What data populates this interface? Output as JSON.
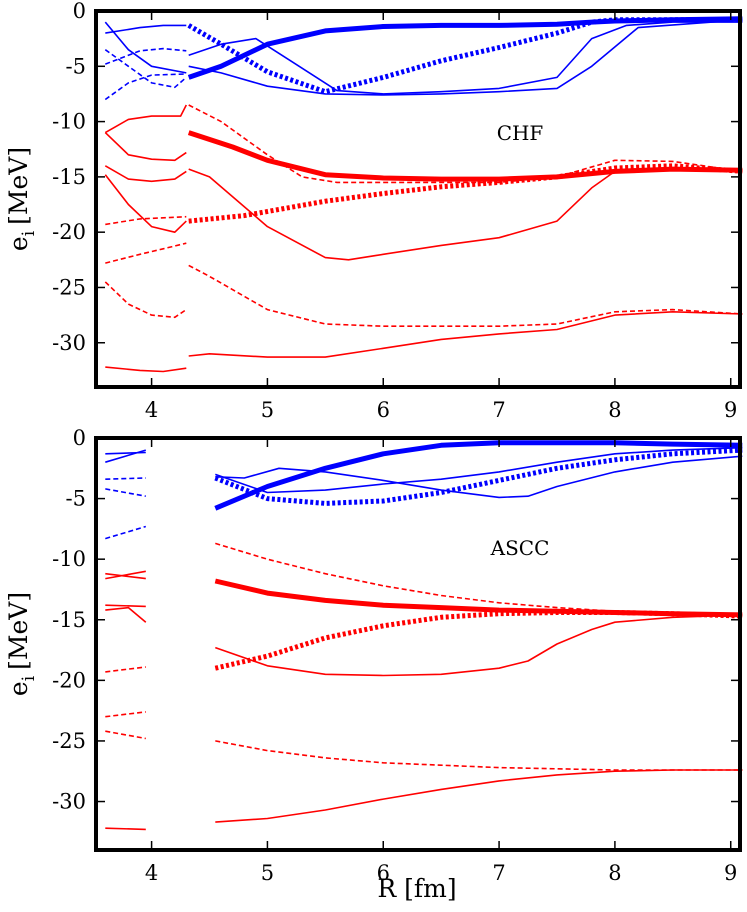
{
  "chart_data": [
    {
      "type": "line",
      "annotation": "CHF",
      "ylabel": "e",
      "ylabel_sub": "i",
      "ylabel_unit": "[MeV]",
      "xlabel": "",
      "xlim": [
        3.52,
        9.08
      ],
      "ylim": [
        -34,
        0
      ],
      "xticks": [
        "4",
        "5",
        "6",
        "7",
        "8",
        "9"
      ],
      "yticks": [
        "0",
        "-5",
        "-10",
        "-15",
        "-20",
        "-25",
        "-30"
      ],
      "series": [
        {
          "color": "#0000ff",
          "style": "solid",
          "weight": "thin",
          "x": [
            3.6,
            3.8,
            4.0,
            4.3
          ],
          "y": [
            -1.0,
            -3.5,
            -5.0,
            -5.6
          ]
        },
        {
          "color": "#0000ff",
          "style": "solid",
          "weight": "thin",
          "x": [
            4.32,
            4.6,
            4.9,
            5.2,
            5.6,
            6.0,
            6.5,
            7.0,
            7.5,
            7.8,
            8.1,
            8.5,
            9.1
          ],
          "y": [
            -4.0,
            -3.0,
            -2.5,
            -4.5,
            -7.2,
            -7.5,
            -7.3,
            -7.0,
            -6.0,
            -2.5,
            -1.3,
            -1.0,
            -1.0
          ]
        },
        {
          "color": "#0000ff",
          "style": "solid",
          "weight": "thin",
          "x": [
            3.6,
            3.9,
            4.1,
            4.3
          ],
          "y": [
            -2.0,
            -1.5,
            -1.3,
            -1.3
          ]
        },
        {
          "color": "#0000ff",
          "style": "solid",
          "weight": "thin",
          "x": [
            4.32,
            4.6,
            5.0,
            5.5,
            6.0,
            6.5,
            7.0,
            7.5,
            7.8,
            8.2,
            9.1
          ],
          "y": [
            -5.0,
            -5.6,
            -6.8,
            -7.5,
            -7.6,
            -7.5,
            -7.3,
            -7.0,
            -5.0,
            -1.5,
            -0.8
          ]
        },
        {
          "color": "#0000ff",
          "style": "dashed",
          "weight": "thin",
          "x": [
            3.6,
            3.8,
            4.0,
            4.3
          ],
          "y": [
            -8.0,
            -6.5,
            -5.8,
            -5.7
          ]
        },
        {
          "color": "#0000ff",
          "style": "dashed",
          "weight": "thin",
          "x": [
            3.6,
            3.8,
            4.0,
            4.2,
            4.3
          ],
          "y": [
            -3.5,
            -5.0,
            -6.5,
            -6.9,
            -6.0
          ]
        },
        {
          "color": "#0000ff",
          "style": "dashed",
          "weight": "thin",
          "x": [
            3.6,
            3.9,
            4.1,
            4.3
          ],
          "y": [
            -4.8,
            -3.6,
            -3.4,
            -3.6
          ]
        },
        {
          "color": "#0000ff",
          "style": "solid",
          "weight": "thick",
          "x": [
            4.32,
            4.6,
            5.0,
            5.5,
            6.0,
            6.5,
            7.0,
            7.5,
            7.8,
            8.0,
            8.5,
            9.1
          ],
          "y": [
            -6.0,
            -5.0,
            -3.0,
            -1.8,
            -1.4,
            -1.3,
            -1.3,
            -1.2,
            -1.0,
            -0.9,
            -0.8,
            -0.7
          ]
        },
        {
          "color": "#0000ff",
          "style": "dashed",
          "weight": "thick",
          "x": [
            4.32,
            4.6,
            5.0,
            5.5,
            6.0,
            6.5,
            7.0,
            7.5,
            7.8,
            8.0,
            8.5,
            9.1
          ],
          "y": [
            -1.3,
            -3.0,
            -5.5,
            -7.3,
            -6.0,
            -4.5,
            -3.3,
            -2.0,
            -1.0,
            -0.8,
            -0.8,
            -0.8
          ]
        },
        {
          "color": "#ff0000",
          "style": "solid",
          "weight": "thick",
          "x": [
            4.32,
            4.7,
            5.0,
            5.5,
            6.0,
            6.5,
            7.0,
            7.5,
            8.0,
            8.5,
            9.1
          ],
          "y": [
            -11.0,
            -12.3,
            -13.5,
            -14.8,
            -15.1,
            -15.2,
            -15.2,
            -15.0,
            -14.5,
            -14.3,
            -14.4
          ]
        },
        {
          "color": "#ff0000",
          "style": "dashed",
          "weight": "thick",
          "x": [
            4.32,
            4.8,
            5.5,
            6.0,
            6.5,
            7.0,
            7.5,
            8.0,
            8.5,
            9.1
          ],
          "y": [
            -19.0,
            -18.5,
            -17.2,
            -16.5,
            -15.9,
            -15.5,
            -15.0,
            -14.2,
            -14.0,
            -14.5
          ]
        },
        {
          "color": "#ff0000",
          "style": "solid",
          "weight": "thin",
          "x": [
            3.6,
            3.8,
            4.0,
            4.25,
            4.3
          ],
          "y": [
            -11.0,
            -9.8,
            -9.5,
            -9.5,
            -8.5
          ]
        },
        {
          "color": "#ff0000",
          "style": "solid",
          "weight": "thin",
          "x": [
            3.6,
            3.8,
            4.0,
            4.2,
            4.3
          ],
          "y": [
            -11.0,
            -13.0,
            -13.4,
            -13.5,
            -12.8
          ]
        },
        {
          "color": "#ff0000",
          "style": "solid",
          "weight": "thin",
          "x": [
            3.6,
            3.8,
            4.0,
            4.2,
            4.3
          ],
          "y": [
            -14.0,
            -15.2,
            -15.4,
            -15.2,
            -14.5
          ]
        },
        {
          "color": "#ff0000",
          "style": "solid",
          "weight": "thin",
          "x": [
            3.6,
            3.8,
            4.0,
            4.2,
            4.3
          ],
          "y": [
            -14.8,
            -17.5,
            -19.5,
            -20.0,
            -19.0
          ]
        },
        {
          "color": "#ff0000",
          "style": "solid",
          "weight": "thin",
          "x": [
            4.32,
            4.5,
            5.0,
            5.5,
            5.7,
            6.0,
            6.5,
            7.0,
            7.5,
            7.8,
            8.0,
            8.5,
            9.1
          ],
          "y": [
            -14.3,
            -15.0,
            -19.5,
            -22.3,
            -22.5,
            -22.0,
            -21.2,
            -20.5,
            -19.0,
            -16.0,
            -14.5,
            -14.3,
            -14.4
          ]
        },
        {
          "color": "#ff0000",
          "style": "dashed",
          "weight": "thin",
          "x": [
            4.32,
            4.6,
            5.0,
            5.3,
            5.6,
            6.0,
            6.5,
            7.0,
            7.5,
            8.0,
            8.5,
            9.1
          ],
          "y": [
            -8.5,
            -10.0,
            -13.0,
            -15.0,
            -15.5,
            -15.5,
            -15.5,
            -15.5,
            -15.0,
            -13.5,
            -13.6,
            -14.5
          ]
        },
        {
          "color": "#ff0000",
          "style": "dashed",
          "weight": "thin",
          "x": [
            3.6,
            3.9,
            4.1,
            4.3
          ],
          "y": [
            -19.3,
            -18.8,
            -18.7,
            -18.6
          ]
        },
        {
          "color": "#ff0000",
          "style": "dashed",
          "weight": "thin",
          "x": [
            3.6,
            3.9,
            4.1,
            4.3
          ],
          "y": [
            -22.8,
            -22.0,
            -21.5,
            -21.0
          ]
        },
        {
          "color": "#ff0000",
          "style": "dashed",
          "weight": "thin",
          "x": [
            3.6,
            3.8,
            4.0,
            4.2,
            4.3
          ],
          "y": [
            -24.5,
            -26.5,
            -27.5,
            -27.7,
            -27.0
          ]
        },
        {
          "color": "#ff0000",
          "style": "dashed",
          "weight": "thin",
          "x": [
            4.32,
            4.5,
            5.0,
            5.5,
            6.0,
            6.5,
            7.0,
            7.5,
            8.0,
            8.5,
            9.1
          ],
          "y": [
            -23.0,
            -24.0,
            -27.0,
            -28.3,
            -28.5,
            -28.5,
            -28.5,
            -28.3,
            -27.2,
            -27.0,
            -27.4
          ]
        },
        {
          "color": "#ff0000",
          "style": "solid",
          "weight": "thin",
          "x": [
            3.6,
            3.9,
            4.1,
            4.3
          ],
          "y": [
            -32.2,
            -32.5,
            -32.6,
            -32.3
          ]
        },
        {
          "color": "#ff0000",
          "style": "solid",
          "weight": "thin",
          "x": [
            4.32,
            4.5,
            5.0,
            5.5,
            6.0,
            6.5,
            7.0,
            7.5,
            8.0,
            8.5,
            9.1
          ],
          "y": [
            -31.2,
            -31.0,
            -31.3,
            -31.3,
            -30.5,
            -29.7,
            -29.2,
            -28.8,
            -27.5,
            -27.2,
            -27.4
          ]
        }
      ]
    },
    {
      "type": "line",
      "annotation": "ASCC",
      "ylabel": "e",
      "ylabel_sub": "i",
      "ylabel_unit": "[MeV]",
      "xlabel": "R [fm]",
      "xlim": [
        3.52,
        9.08
      ],
      "ylim": [
        -34,
        0
      ],
      "xticks": [
        "4",
        "5",
        "6",
        "7",
        "8",
        "9"
      ],
      "yticks": [
        "0",
        "-5",
        "-10",
        "-15",
        "-20",
        "-25",
        "-30"
      ],
      "series": [
        {
          "color": "#0000ff",
          "style": "solid",
          "weight": "thin",
          "x": [
            3.6,
            3.95
          ],
          "y": [
            -1.3,
            -1.2
          ]
        },
        {
          "color": "#0000ff",
          "style": "solid",
          "weight": "thin",
          "x": [
            3.6,
            3.95
          ],
          "y": [
            -2.0,
            -1.0
          ]
        },
        {
          "color": "#0000ff",
          "style": "dashed",
          "weight": "thin",
          "x": [
            3.6,
            3.95
          ],
          "y": [
            -3.4,
            -3.3
          ]
        },
        {
          "color": "#0000ff",
          "style": "dashed",
          "weight": "thin",
          "x": [
            3.6,
            3.95
          ],
          "y": [
            -4.2,
            -4.8
          ]
        },
        {
          "color": "#0000ff",
          "style": "dashed",
          "weight": "thin",
          "x": [
            3.6,
            3.95
          ],
          "y": [
            -8.3,
            -7.3
          ]
        },
        {
          "color": "#0000ff",
          "style": "solid",
          "weight": "thin",
          "x": [
            4.55,
            4.8,
            5.1,
            5.5,
            6.0,
            6.5,
            7.0,
            7.25,
            7.5,
            8.0,
            8.5,
            9.1
          ],
          "y": [
            -3.2,
            -3.3,
            -2.5,
            -2.8,
            -3.5,
            -4.3,
            -4.9,
            -4.8,
            -4.0,
            -2.8,
            -2.0,
            -1.5
          ]
        },
        {
          "color": "#0000ff",
          "style": "solid",
          "weight": "thin",
          "x": [
            4.55,
            5.0,
            5.5,
            6.0,
            6.5,
            7.0,
            7.5,
            8.0,
            8.5,
            9.1
          ],
          "y": [
            -3.0,
            -4.5,
            -4.3,
            -3.8,
            -3.4,
            -2.8,
            -2.0,
            -1.3,
            -1.0,
            -0.8
          ]
        },
        {
          "color": "#0000ff",
          "style": "solid",
          "weight": "thick",
          "x": [
            4.55,
            5.0,
            5.5,
            6.0,
            6.5,
            7.0,
            7.5,
            8.0,
            8.5,
            9.1
          ],
          "y": [
            -5.8,
            -4.0,
            -2.5,
            -1.3,
            -0.6,
            -0.4,
            -0.4,
            -0.4,
            -0.5,
            -0.6
          ]
        },
        {
          "color": "#0000ff",
          "style": "dashed",
          "weight": "thick",
          "x": [
            4.55,
            5.0,
            5.5,
            6.0,
            6.5,
            7.0,
            7.5,
            8.0,
            8.5,
            9.1
          ],
          "y": [
            -3.3,
            -5.0,
            -5.4,
            -5.2,
            -4.5,
            -3.5,
            -2.5,
            -1.8,
            -1.3,
            -1.0
          ]
        },
        {
          "color": "#ff0000",
          "style": "solid",
          "weight": "thin",
          "x": [
            3.6,
            3.95
          ],
          "y": [
            -11.2,
            -11.6
          ]
        },
        {
          "color": "#ff0000",
          "style": "solid",
          "weight": "thin",
          "x": [
            3.6,
            3.95
          ],
          "y": [
            -11.6,
            -11.0
          ]
        },
        {
          "color": "#ff0000",
          "style": "solid",
          "weight": "thin",
          "x": [
            3.6,
            3.95
          ],
          "y": [
            -13.8,
            -13.9
          ]
        },
        {
          "color": "#ff0000",
          "style": "solid",
          "weight": "thin",
          "x": [
            3.6,
            3.8,
            3.95
          ],
          "y": [
            -14.2,
            -14.0,
            -15.2
          ]
        },
        {
          "color": "#ff0000",
          "style": "dashed",
          "weight": "thin",
          "x": [
            3.6,
            3.95
          ],
          "y": [
            -19.3,
            -18.9
          ]
        },
        {
          "color": "#ff0000",
          "style": "dashed",
          "weight": "thin",
          "x": [
            3.6,
            3.95
          ],
          "y": [
            -23.0,
            -22.6
          ]
        },
        {
          "color": "#ff0000",
          "style": "dashed",
          "weight": "thin",
          "x": [
            3.6,
            3.95
          ],
          "y": [
            -24.2,
            -24.8
          ]
        },
        {
          "color": "#ff0000",
          "style": "solid",
          "weight": "thin",
          "x": [
            3.6,
            3.95
          ],
          "y": [
            -32.2,
            -32.3
          ]
        },
        {
          "color": "#ff0000",
          "style": "dashed",
          "weight": "thin",
          "x": [
            4.55,
            5.0,
            5.5,
            6.0,
            6.5,
            7.0,
            7.5,
            8.0,
            8.5,
            9.1
          ],
          "y": [
            -8.7,
            -10.0,
            -11.2,
            -12.2,
            -13.0,
            -13.6,
            -14.0,
            -14.3,
            -14.4,
            -14.5
          ]
        },
        {
          "color": "#ff0000",
          "style": "solid",
          "weight": "thick",
          "x": [
            4.55,
            5.0,
            5.5,
            6.0,
            6.5,
            7.0,
            7.5,
            8.0,
            8.5,
            9.1
          ],
          "y": [
            -11.8,
            -12.8,
            -13.4,
            -13.8,
            -14.0,
            -14.2,
            -14.3,
            -14.4,
            -14.5,
            -14.6
          ]
        },
        {
          "color": "#ff0000",
          "style": "dashed",
          "weight": "thick",
          "x": [
            4.55,
            5.0,
            5.5,
            6.0,
            6.5,
            7.0,
            7.5,
            8.0,
            8.5,
            9.1
          ],
          "y": [
            -19.0,
            -18.0,
            -16.5,
            -15.5,
            -14.8,
            -14.5,
            -14.4,
            -14.4,
            -14.5,
            -14.7
          ]
        },
        {
          "color": "#ff0000",
          "style": "solid",
          "weight": "thin",
          "x": [
            4.55,
            5.0,
            5.5,
            6.0,
            6.5,
            7.0,
            7.25,
            7.5,
            7.8,
            8.0,
            8.5,
            9.1
          ],
          "y": [
            -17.3,
            -18.8,
            -19.5,
            -19.6,
            -19.5,
            -19.0,
            -18.4,
            -17.0,
            -15.8,
            -15.2,
            -14.8,
            -14.6
          ]
        },
        {
          "color": "#ff0000",
          "style": "dashed",
          "weight": "thin",
          "x": [
            4.55,
            5.0,
            5.5,
            6.0,
            6.5,
            7.0,
            7.5,
            8.0,
            8.5,
            9.1
          ],
          "y": [
            -25.0,
            -25.8,
            -26.4,
            -26.8,
            -27.0,
            -27.2,
            -27.3,
            -27.4,
            -27.4,
            -27.4
          ]
        },
        {
          "color": "#ff0000",
          "style": "solid",
          "weight": "thin",
          "x": [
            4.55,
            5.0,
            5.5,
            6.0,
            6.5,
            7.0,
            7.5,
            8.0,
            8.5,
            9.1
          ],
          "y": [
            -31.7,
            -31.4,
            -30.7,
            -29.8,
            -29.0,
            -28.3,
            -27.8,
            -27.5,
            -27.4,
            -27.4
          ]
        }
      ]
    }
  ]
}
